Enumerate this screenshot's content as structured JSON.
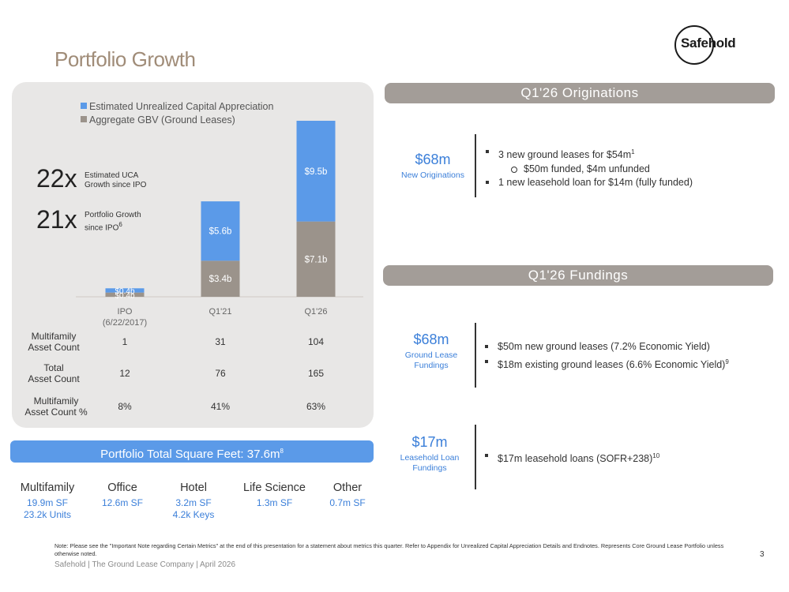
{
  "title": "Portfolio Growth",
  "logo": {
    "text": "Safehold"
  },
  "chart_data": {
    "type": "bar",
    "stacked": true,
    "categories": [
      "IPO (6/22/2017)",
      "Q1'21",
      "Q1'26"
    ],
    "series": [
      {
        "name": "Aggregate GBV (Ground Leases)",
        "values": [
          0.4,
          3.4,
          7.1
        ],
        "labels": [
          "$0.4b",
          "$3.4b",
          "$7.1b"
        ],
        "color": "#9b938b"
      },
      {
        "name": "Estimated Unrealized Capital Appreciation",
        "values": [
          0.4,
          5.6,
          9.5
        ],
        "labels": [
          "$0.4b",
          "$5.6b",
          "$9.5b"
        ],
        "color": "#5b9ae8"
      }
    ],
    "ylim": [
      0,
      16.6
    ]
  },
  "chart": {
    "legend": [
      "Estimated Unrealized Capital Appreciation",
      "Aggregate GBV (Ground Leases)"
    ],
    "axis": [
      "IPO\n(6/22/2017)",
      "Q1'21",
      "Q1'26"
    ]
  },
  "stats": [
    {
      "value": "22x",
      "caption": "Estimated UCA\nGrowth since IPO"
    },
    {
      "value": "21x",
      "caption": "Portfolio Growth\nsince IPO",
      "sup": "6"
    }
  ],
  "table": {
    "rows": [
      {
        "label": "Multifamily\nAsset Count",
        "values": [
          "1",
          "31",
          "104"
        ]
      },
      {
        "label": "Total\nAsset Count",
        "values": [
          "12",
          "76",
          "165"
        ]
      },
      {
        "label": "Multifamily\nAsset Count %",
        "values": [
          "8%",
          "41%",
          "63%"
        ]
      }
    ]
  },
  "sqft": {
    "label": "Portfolio Total Square Feet: 37.6m",
    "sup": "8"
  },
  "property_types": [
    {
      "name": "Multifamily",
      "line1": "19.9m SF",
      "line2": "23.2k Units"
    },
    {
      "name": "Office",
      "line1": "12.6m SF",
      "line2": ""
    },
    {
      "name": "Hotel",
      "line1": "3.2m SF",
      "line2": "4.2k Keys"
    },
    {
      "name": "Life Science",
      "line1": "1.3m SF",
      "line2": ""
    },
    {
      "name": "Other",
      "line1": "0.7m SF",
      "line2": ""
    }
  ],
  "originations": {
    "header": "Q1'26 Originations",
    "metric_value": "$68m",
    "metric_caption": "New Originations",
    "bullet1": "3 new ground leases for $54m",
    "bullet1_sup": "1",
    "sub1": "$50m funded, $4m unfunded",
    "bullet2": "1 new leasehold loan for $14m (fully funded)"
  },
  "fundings": {
    "header": "Q1'26 Fundings",
    "gl_value": "$68m",
    "gl_caption": "Ground Lease\nFundings",
    "gl_bullet1": "$50m new ground leases (7.2% Economic Yield)",
    "gl_bullet2": "$18m existing ground leases (6.6% Economic Yield)",
    "gl_bullet2_sup": "9",
    "ll_value": "$17m",
    "ll_caption": "Leasehold Loan\nFundings",
    "ll_bullet": "$17m leasehold loans (SOFR+238)",
    "ll_bullet_sup": "10"
  },
  "footnote": "Note: Please see the \"Important Note regarding Certain Metrics\" at the end of this presentation for a statement about metrics this quarter. Refer to Appendix for Unrealized Capital Appreciation Details and Endnotes. Represents Core Ground Lease Portfolio unless otherwise noted.",
  "footer": "Safehold | The Ground Lease Company | April 2026",
  "page_number": "3"
}
